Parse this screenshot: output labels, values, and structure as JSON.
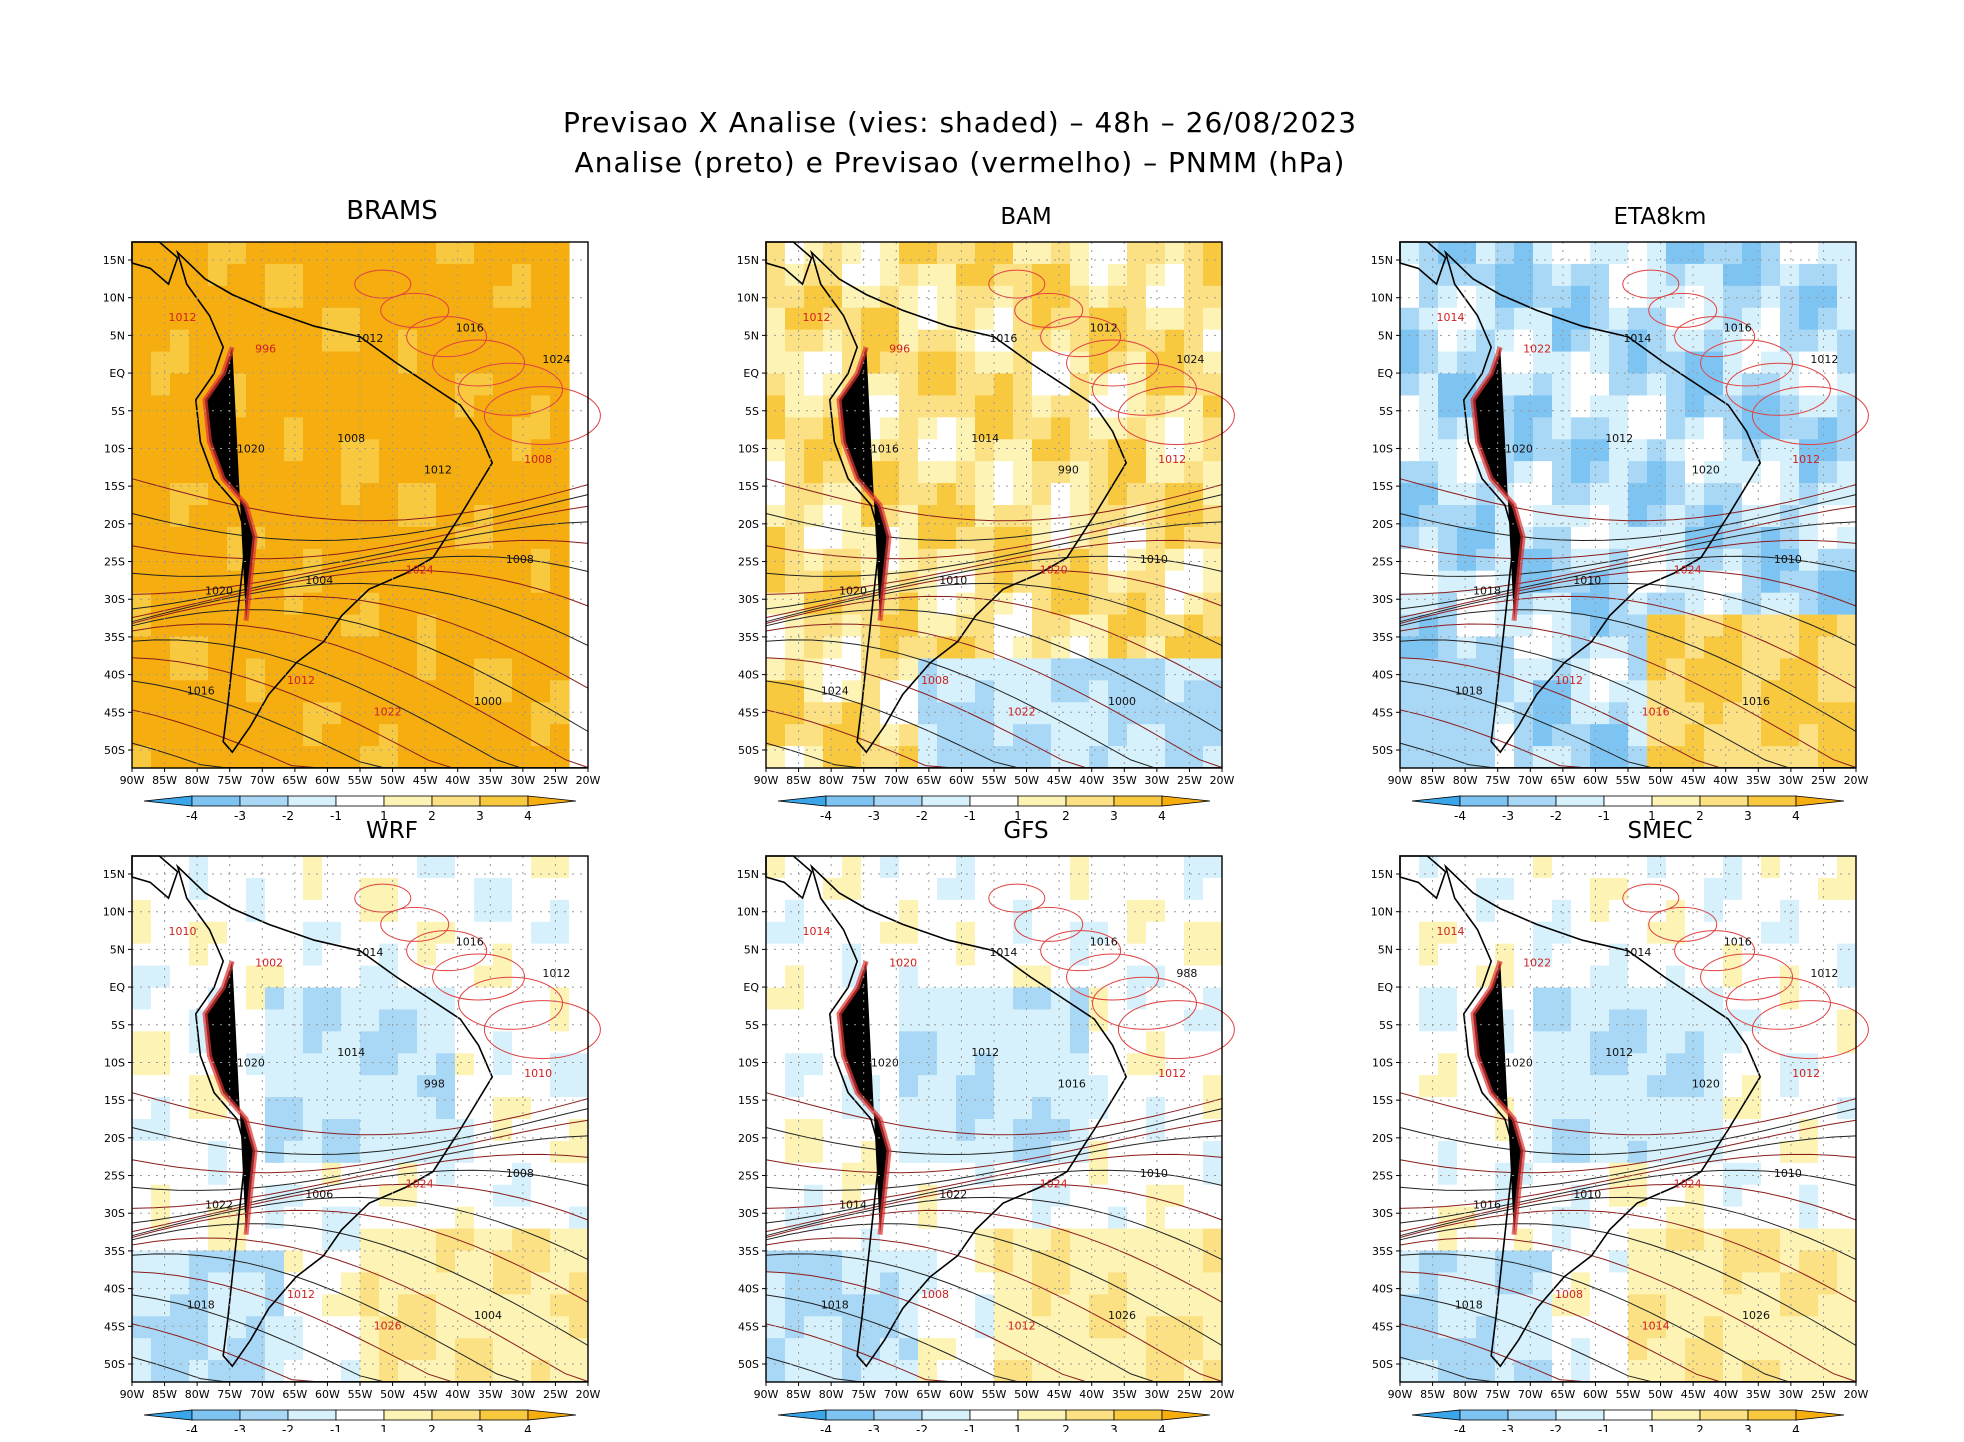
{
  "title": {
    "line1": "Previsao X Analise (vies: shaded) – 48h – 26/08/2023",
    "line2": "Analise (preto) e Previsao (vermelho) – PNMM (hPa)"
  },
  "axes": {
    "lon_labels": [
      "90W",
      "85W",
      "80W",
      "75W",
      "70W",
      "65W",
      "60W",
      "55W",
      "50W",
      "45W",
      "40W",
      "35W",
      "30W",
      "25W",
      "20W"
    ],
    "lat_labels": [
      "15N",
      "10N",
      "5N",
      "EQ",
      "5S",
      "10S",
      "15S",
      "20S",
      "25S",
      "30S",
      "35S",
      "40S",
      "45S",
      "50S"
    ]
  },
  "colorbar": {
    "tick_labels": [
      "-4",
      "-3",
      "-2",
      "-1",
      "1",
      "2",
      "3",
      "4"
    ],
    "colors": [
      "#3aa6ea",
      "#7ec4f2",
      "#a9d8f6",
      "#d6f1fb",
      "#ffffff",
      "#fcf3b4",
      "#fbe184",
      "#f8c93e",
      "#f5ad10"
    ]
  },
  "panels": [
    {
      "name": "BRAMS",
      "bias": "positive-strong",
      "labels": [
        "1012",
        "1008",
        "1008",
        "1012",
        "1016",
        "1020",
        "1024",
        "1016",
        "1012",
        "1008",
        "1004",
        "1000",
        "996",
        "1012",
        "1020",
        "1022",
        "1024"
      ]
    },
    {
      "name": "BAM",
      "bias": "positive",
      "labels": [
        "1012",
        "1014",
        "1010",
        "1008",
        "1012",
        "1016",
        "1020",
        "1024",
        "1016",
        "1012",
        "1010",
        "1000",
        "996",
        "990",
        "1020",
        "1022",
        "1024"
      ]
    },
    {
      "name": "ETA8km",
      "bias": "negative",
      "labels": [
        "1014",
        "1012",
        "1010",
        "1012",
        "1016",
        "1020",
        "1024",
        "1018",
        "1014",
        "1012",
        "1010",
        "1016",
        "1022",
        "1020",
        "1018",
        "1016",
        "1012"
      ]
    },
    {
      "name": "WRF",
      "bias": "mixed",
      "labels": [
        "1010",
        "1014",
        "1008",
        "1012",
        "1016",
        "1020",
        "1024",
        "1018",
        "1014",
        "1010",
        "1006",
        "1004",
        "1002",
        "998",
        "1022",
        "1026",
        "1012"
      ]
    },
    {
      "name": "GFS",
      "bias": "mixed",
      "labels": [
        "1014",
        "1012",
        "1010",
        "1008",
        "1016",
        "1020",
        "1024",
        "1018",
        "1014",
        "1012",
        "1022",
        "1026",
        "1020",
        "1016",
        "1014",
        "1012",
        "988"
      ]
    },
    {
      "name": "SMEC",
      "bias": "mixed",
      "labels": [
        "1014",
        "1012",
        "1010",
        "1008",
        "1016",
        "1020",
        "1024",
        "1018",
        "1014",
        "1012",
        "1010",
        "1026",
        "1022",
        "1020",
        "1016",
        "1014",
        "1012"
      ]
    }
  ]
}
